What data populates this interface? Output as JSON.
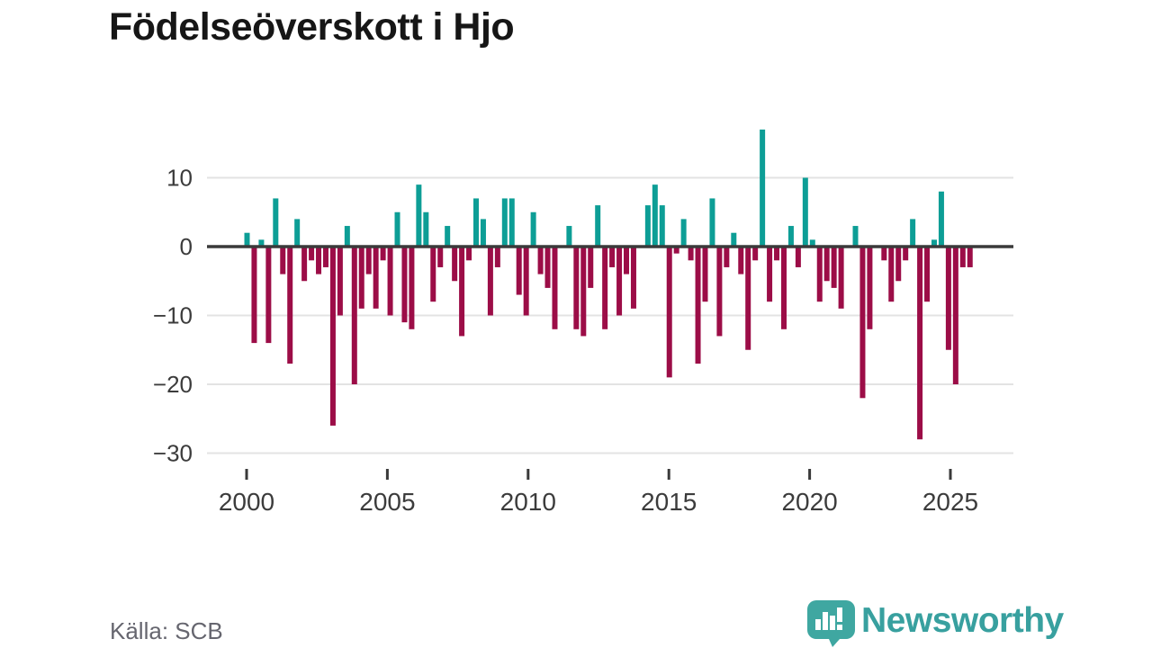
{
  "title": "Födelseöverskott i Hjo",
  "source": "Källa: SCB",
  "logo": {
    "text": "Newsworthy",
    "icon": "speech-bubble-with-bar-chart-and-exclamation",
    "icon_color": "#3fa7a1",
    "text_color": "#38a09f"
  },
  "chart_data": {
    "type": "bar",
    "title": "Födelseöverskott i Hjo",
    "xlabel": "",
    "ylabel": "",
    "x_start_year": 2000,
    "bars_per_year": 4,
    "x_range_note": "quarterly values from 2000 through mid-2025",
    "values": [
      2,
      -14,
      1,
      -14,
      7,
      -4,
      -17,
      4,
      -5,
      -2,
      -4,
      -3,
      -26,
      -10,
      3,
      -20,
      -9,
      -4,
      -9,
      -2,
      -10,
      5,
      -11,
      -12,
      9,
      5,
      -8,
      -3,
      3,
      -5,
      -13,
      -2,
      7,
      4,
      -10,
      -3,
      7,
      7,
      -7,
      -10,
      5,
      -4,
      -6,
      -12,
      0,
      3,
      -12,
      -13,
      -6,
      6,
      -12,
      -3,
      -10,
      -4,
      -9,
      0,
      6,
      9,
      6,
      -19,
      -1,
      4,
      -2,
      -17,
      -8,
      7,
      -13,
      -3,
      2,
      -4,
      -15,
      -2,
      17,
      -8,
      -2,
      -12,
      3,
      -3,
      10,
      1,
      -8,
      -5,
      -6,
      -9,
      0,
      3,
      -22,
      -12,
      0,
      -2,
      -8,
      -5,
      -2,
      4,
      -28,
      -8,
      1,
      8,
      -15,
      -20,
      -3,
      -3
    ],
    "xticks": [
      2000,
      2005,
      2010,
      2015,
      2020,
      2025
    ],
    "yticks": [
      10,
      0,
      -10,
      -20,
      -30
    ],
    "ylim": [
      -30,
      18
    ],
    "grid": true,
    "legend": false,
    "positive_color": "#0d9e96",
    "negative_color": "#9c0d47",
    "zero_line_color": "#3a3a3a",
    "gridline_color": "#e3e3e3",
    "tick_label_color": "#3c3c3c"
  }
}
